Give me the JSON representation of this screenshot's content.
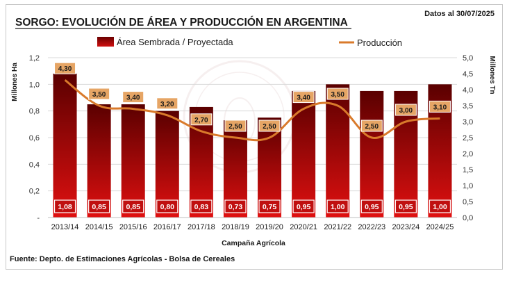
{
  "chart_data": {
    "type": "bar",
    "title": "SORGO: EVOLUCIÓN DE ÁREA Y PRODUCCIÓN EN ARGENTINA",
    "date_note": "Datos al 30/07/2025",
    "source": "Fuente: Depto. de Estimaciones Agrícolas - Bolsa de Cereales",
    "xlabel": "Campaña Agrícola",
    "ylabel_left": "Millones Ha",
    "ylabel_right": "Millones Tn",
    "categories": [
      "2013/14",
      "2014/15",
      "2015/16",
      "2016/17",
      "2017/18",
      "2018/19",
      "2019/20",
      "2020/21",
      "2021/22",
      "2022/23",
      "2023/24",
      "2024/25"
    ],
    "series": [
      {
        "name": "Área Sembrada / Proyectada",
        "type": "bar",
        "axis": "left",
        "values": [
          1.08,
          0.85,
          0.85,
          0.8,
          0.83,
          0.73,
          0.75,
          0.95,
          1.0,
          0.95,
          0.95,
          1.0
        ],
        "labels": [
          "1,08",
          "0,85",
          "0,85",
          "0,80",
          "0,83",
          "0,73",
          "0,75",
          "0,95",
          "1,00",
          "0,95",
          "0,95",
          "1,00"
        ]
      },
      {
        "name": "Producción",
        "type": "line",
        "axis": "right",
        "values": [
          4.3,
          3.5,
          3.4,
          3.2,
          2.7,
          2.5,
          2.5,
          3.4,
          3.5,
          2.5,
          3.0,
          3.1
        ],
        "labels": [
          "4,30",
          "3,50",
          "3,40",
          "3,20",
          "2,70",
          "2,50",
          "2,50",
          "3,40",
          "3,50",
          "2,50",
          "3,00",
          "3,10"
        ]
      }
    ],
    "ylim_left": [
      0,
      1.2
    ],
    "ylim_right": [
      0,
      5.0
    ],
    "yticks_left": [
      "-",
      "0,2",
      "0,4",
      "0,6",
      "0,8",
      "1,0",
      "1,2"
    ],
    "yticks_right": [
      "0,0",
      "0,5",
      "1,0",
      "1,5",
      "2,0",
      "2,5",
      "3,0",
      "3,5",
      "4,0",
      "4,5",
      "5,0"
    ],
    "legend_position": "top",
    "grid": true,
    "colors": {
      "bar_top": "#5a0000",
      "bar_bottom": "#e01010",
      "line": "#d97a2b",
      "line_label_bg": "#e6a565",
      "title": "#1a1a1a"
    }
  }
}
